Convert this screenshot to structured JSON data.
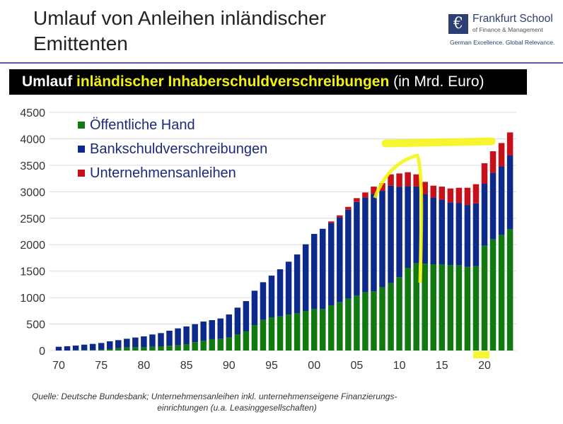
{
  "slide": {
    "title_line1": "Umlauf von Anleihen inländischer",
    "title_line2": "Emittenten",
    "logo": {
      "icon": "euro-f-logo-icon",
      "name": "Frankfurt School",
      "subtitle": "of Finance & Management",
      "tagline": "German Excellence. Global Relevance."
    },
    "banner": {
      "part1": "Umlauf ",
      "part2": "inländischer Inhaberschuldverschreibungen",
      "part3": " (in Mrd. Euro)"
    },
    "source_line1": "Quelle: Deutsche Bundesbank; Unternehmensanleihen inkl. unternehmenseigene Finanzierungs-",
    "source_line2": "einrichtungen (u.a. Leasinggesellschaften)"
  },
  "chart_data": {
    "type": "bar",
    "stacked": true,
    "title": "Umlauf inländischer Inhaberschuldverschreibungen (in Mrd. Euro)",
    "ylim": [
      0,
      4500
    ],
    "yticks": [
      0,
      500,
      1000,
      1500,
      2000,
      2500,
      3000,
      3500,
      4000,
      4500
    ],
    "xtick_labels": [
      "70",
      "75",
      "80",
      "85",
      "90",
      "95",
      "00",
      "05",
      "10",
      "15",
      "20"
    ],
    "grid": true,
    "legend_position": "top-left",
    "categories": [
      1970,
      1971,
      1972,
      1973,
      1974,
      1975,
      1976,
      1977,
      1978,
      1979,
      1980,
      1981,
      1982,
      1983,
      1984,
      1985,
      1986,
      1987,
      1988,
      1989,
      1990,
      1991,
      1992,
      1993,
      1994,
      1995,
      1996,
      1997,
      1998,
      1999,
      2000,
      2001,
      2002,
      2003,
      2004,
      2005,
      2006,
      2007,
      2008,
      2009,
      2010,
      2011,
      2012,
      2013,
      2014,
      2015,
      2016,
      2017,
      2018,
      2019,
      2020,
      2021,
      2022,
      2023
    ],
    "series": [
      {
        "name": "Öffentliche Hand",
        "color": "#107a10",
        "values": [
          0,
          0,
          5,
          8,
          10,
          15,
          27,
          45,
          58,
          62,
          62,
          71,
          80,
          89,
          98,
          120,
          156,
          182,
          214,
          222,
          245,
          307,
          360,
          480,
          578,
          627,
          645,
          680,
          708,
          748,
          783,
          783,
          854,
          912,
          979,
          1037,
          1099,
          1117,
          1193,
          1273,
          1384,
          1562,
          1647,
          1638,
          1629,
          1624,
          1615,
          1611,
          1580,
          1593,
          1980,
          2100,
          2181,
          2296
        ]
      },
      {
        "name": "Bankschuldverschreibungen",
        "color": "#0d2a8a",
        "values": [
          71,
          80,
          88,
          103,
          115,
          127,
          147,
          151,
          164,
          183,
          205,
          232,
          249,
          285,
          320,
          334,
          342,
          365,
          360,
          383,
          436,
          503,
          574,
          650,
          712,
          788,
          890,
          998,
          1107,
          1259,
          1420,
          1517,
          1555,
          1607,
          1682,
          1771,
          1794,
          1846,
          1824,
          1842,
          1708,
          1544,
          1452,
          1321,
          1263,
          1228,
          1185,
          1179,
          1170,
          1189,
          1171,
          1260,
          1298,
          1389
        ]
      },
      {
        "name": "Unternehmensanleihen",
        "color": "#c8101a",
        "values": [
          0,
          0,
          0,
          0,
          0,
          0,
          0,
          0,
          0,
          0,
          0,
          0,
          0,
          0,
          0,
          0,
          0,
          0,
          0,
          0,
          0,
          0,
          0,
          0,
          0,
          0,
          0,
          0,
          0,
          0,
          0,
          0,
          30,
          35,
          53,
          71,
          93,
          134,
          147,
          214,
          254,
          263,
          230,
          227,
          223,
          245,
          262,
          285,
          325,
          360,
          387,
          405,
          441,
          436
        ]
      }
    ]
  }
}
